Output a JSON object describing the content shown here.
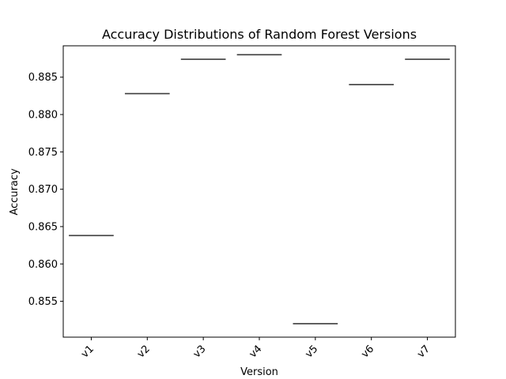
{
  "chart_data": {
    "type": "box",
    "title": "Accuracy Distributions of Random Forest Versions",
    "xlabel": "Version",
    "ylabel": "Accuracy",
    "categories": [
      "v1",
      "v2",
      "v3",
      "v4",
      "v5",
      "v6",
      "v7"
    ],
    "values": [
      0.8638,
      0.8828,
      0.8874,
      0.888,
      0.852,
      0.884,
      0.8874
    ],
    "ylim": [
      0.8502,
      0.8892
    ],
    "yticks": [
      0.855,
      0.86,
      0.865,
      0.87,
      0.875,
      0.88,
      0.885
    ],
    "ytick_labels": [
      "0.855",
      "0.860",
      "0.865",
      "0.870",
      "0.875",
      "0.880",
      "0.885"
    ],
    "grid": false,
    "box_color": "#3d3d3d",
    "x_tick_rotation_deg": 45
  }
}
